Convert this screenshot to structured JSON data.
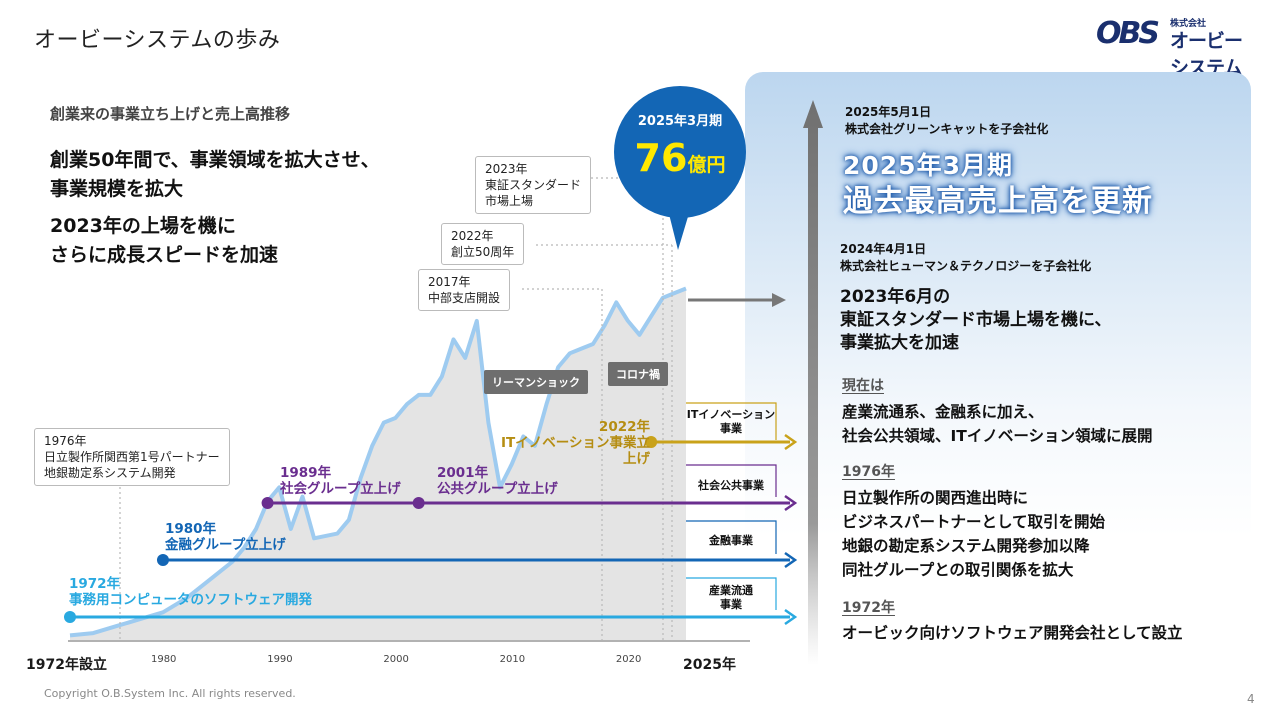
{
  "header": {
    "title": "オービーシステムの歩み",
    "logo_sub": "株式会社",
    "logo_main": "オービーシステム",
    "logo_mark": "OBS"
  },
  "left": {
    "subtitle": "創業来の事業立ち上げと売上高推移",
    "lead1": [
      "創業50年間で、事業領域を拡大させ、",
      "事業規模を拡大"
    ],
    "lead2": [
      "2023年の上場を機に",
      "さらに成長スピードを加速"
    ]
  },
  "bubble": {
    "period": "2025年3月期",
    "amount": "76",
    "unit": "億円"
  },
  "callouts": {
    "c2023": [
      "2023年",
      "東証スタンダード",
      "市場上場"
    ],
    "c2022": [
      "2022年",
      "創立50周年"
    ],
    "c2017": [
      "2017年",
      "中部支店開設"
    ],
    "c1976": [
      "1976年",
      "日立製作所関西第1号パートナー",
      "地銀勘定系システム開発"
    ]
  },
  "tags": {
    "lehman": "リーマンショック",
    "covid": "コロナ禍"
  },
  "events": {
    "e1972": [
      "1972年",
      "事務用コンピュータのソフトウェア開発"
    ],
    "e1980": [
      "1980年",
      "金融グループ立上げ"
    ],
    "e1989": [
      "1989年",
      "社会グループ立上げ"
    ],
    "e2001": [
      "2001年",
      "公共グループ立上げ"
    ],
    "e2022": [
      "2022年",
      "ITイノベーション事業立上げ"
    ]
  },
  "segments": {
    "it": [
      "ITイノベーション",
      "事業"
    ],
    "public": [
      "社会公共事業"
    ],
    "finance": [
      "金融事業"
    ],
    "industry": [
      "産業流通",
      "事業"
    ]
  },
  "axis": {
    "start": "1972年設立",
    "end": "2025年",
    "ticks": [
      "1980",
      "1990",
      "2000",
      "2010",
      "2020"
    ]
  },
  "right": {
    "n2025_date": "2025年5月1日",
    "n2025_text": "株式会社グリーンキャットを子会社化",
    "record": [
      "2025年3月期",
      "過去最高売上高を更新"
    ],
    "n2024_date": "2024年4月1日",
    "n2024_text": "株式会社ヒューマン＆テクノロジーを子会社化",
    "ipo": [
      "2023年6月の",
      "東証スタンダード市場上場を機に、",
      "事業拡大を加速"
    ],
    "now_head": "現在は",
    "now_text": [
      "産業流通系、金融系に加え、",
      "社会公共領域、ITイノベーション領域に展開"
    ],
    "y1976_head": "1976年",
    "y1976_text": [
      "日立製作所の関西進出時に",
      "ビジネスパートナーとして取引を開始",
      "地銀の勘定系システム開発参加以降",
      "同社グループとの取引関係を拡大"
    ],
    "y1972_head": "1972年",
    "y1972_text": "オービック向けソフトウェア開発会社として設立"
  },
  "footer": {
    "copyright": "Copyright O.B.System Inc. All rights reserved.",
    "page": "4"
  },
  "colors": {
    "c1972": "#29a9e0",
    "c1980": "#1366b5",
    "c1989": "#6a2e8f",
    "c2022": "#c9a21a",
    "curve": "#9ecbf0",
    "area": "#e4e4e4"
  },
  "chart_data": {
    "type": "area",
    "title": "",
    "xlabel": "",
    "ylabel": "",
    "xlim": [
      1972,
      2025
    ],
    "x": [
      1972,
      1974,
      1976,
      1978,
      1980,
      1982,
      1984,
      1986,
      1987,
      1988,
      1989,
      1990,
      1991,
      1992,
      1993,
      1995,
      1996,
      1997,
      1998,
      1999,
      2000,
      2001,
      2002,
      2003,
      2004,
      2005,
      2006,
      2007,
      2008,
      2009,
      2010,
      2011,
      2012,
      2013,
      2014,
      2015,
      2016,
      2017,
      2018,
      2019,
      2020,
      2021,
      2022,
      2023,
      2024,
      2025
    ],
    "values": [
      1,
      1.5,
      3,
      4.5,
      6,
      9,
      13,
      17,
      20,
      24,
      30,
      33,
      24,
      31,
      22,
      23,
      26,
      35,
      42,
      47,
      48,
      51,
      53,
      53,
      57,
      65,
      61,
      69,
      47,
      33,
      38,
      44,
      42,
      51,
      59,
      62,
      63,
      64,
      68,
      73,
      69,
      66,
      70,
      74,
      75,
      76
    ],
    "unit": "億円",
    "last_value_label": "76億円"
  }
}
